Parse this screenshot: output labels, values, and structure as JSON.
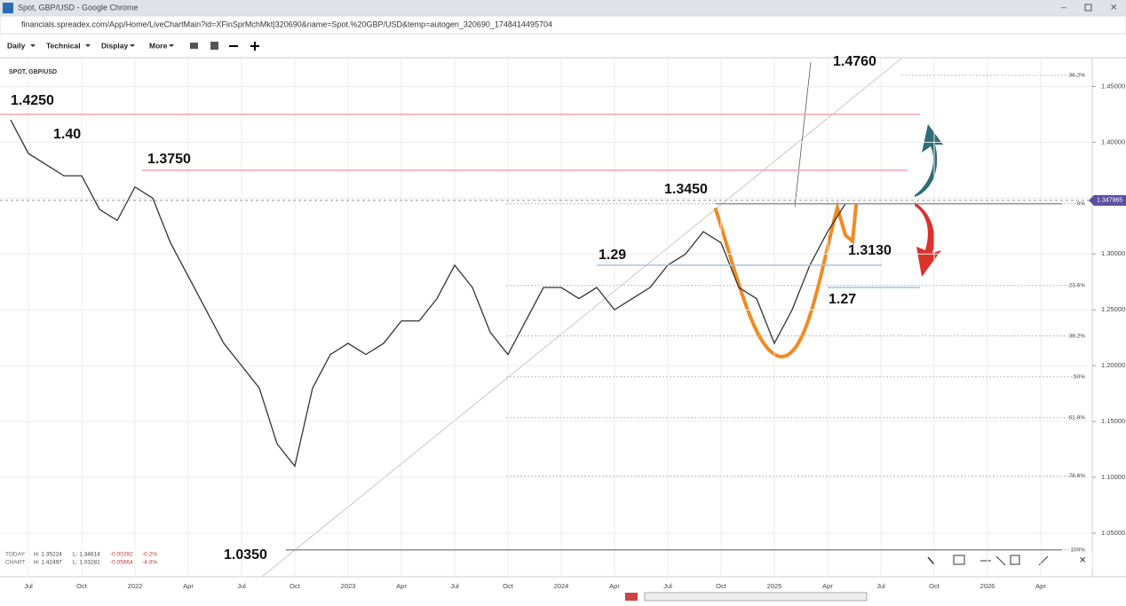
{
  "window": {
    "title": "Spot, GBP/USD - Google Chrome",
    "url": "financials.spreadex.com/App/Home/LiveChartMain?id=XFinSprMchMkt|320690&name=Spot.%20GBP/USD&temp=autogen_320690_1748414495704"
  },
  "toolbar": {
    "menus": [
      "Daily",
      "Technical",
      "Display",
      "More"
    ]
  },
  "chart_data": {
    "type": "line",
    "title": "SPOT, GBP/USD",
    "color": "#333333",
    "grid": true,
    "categories": [
      null,
      "Jul",
      null,
      null,
      "Oct",
      null,
      null,
      "2022",
      null,
      null,
      "Apr",
      null,
      null,
      "Jul",
      null,
      null,
      "Oct",
      null,
      null,
      "2023",
      null,
      null,
      "Apr",
      null,
      null,
      "Jul",
      null,
      null,
      "Oct",
      null,
      null,
      "2024",
      null,
      null,
      "Apr",
      null,
      null,
      "Jul",
      null,
      null,
      "Oct",
      null,
      null,
      "2025",
      null,
      null,
      "Apr",
      null,
      null,
      "Jul",
      null,
      null,
      "Oct",
      null,
      null,
      "2026",
      null,
      null,
      "Apr"
    ],
    "values": [
      1.42,
      1.39,
      1.38,
      1.37,
      1.37,
      1.34,
      1.33,
      1.36,
      1.35,
      1.31,
      1.28,
      1.25,
      1.22,
      1.2,
      1.18,
      1.13,
      1.11,
      1.18,
      1.21,
      1.22,
      1.21,
      1.22,
      1.24,
      1.24,
      1.26,
      1.29,
      1.27,
      1.23,
      1.21,
      1.24,
      1.27,
      1.27,
      1.26,
      1.27,
      1.25,
      1.26,
      1.27,
      1.29,
      1.3,
      1.32,
      1.31,
      1.27,
      1.26,
      1.22,
      1.25,
      1.29,
      1.32,
      1.345,
      null,
      null,
      null,
      null,
      null,
      null,
      null,
      null,
      null,
      null,
      null
    ],
    "ylim": [
      1.011,
      1.475
    ],
    "yticks": [
      {
        "value": 1.05,
        "label": "1.05000"
      },
      {
        "value": 1.1,
        "label": "1.10000"
      },
      {
        "value": 1.15,
        "label": "1.15000"
      },
      {
        "value": 1.2,
        "label": "1.20000"
      },
      {
        "value": 1.25,
        "label": "1.25000"
      },
      {
        "value": 1.3,
        "label": "1.30000"
      },
      {
        "value": 1.35,
        "label": "1.35000"
      },
      {
        "value": 1.4,
        "label": "1.40000"
      },
      {
        "value": 1.45,
        "label": "1.45000"
      }
    ],
    "price_tag": 1.347965,
    "levels": [
      {
        "value": 1.425,
        "label": "1.4250",
        "color": "#f4a3b5"
      },
      {
        "value": 1.375,
        "label": "1.3750",
        "color": "#f4a3b5"
      },
      {
        "value": 1.345,
        "label": "1.3450",
        "color": "#8a8f99"
      },
      {
        "value": 1.29,
        "label": "1.29",
        "color": "#a9c4d4"
      },
      {
        "value": 1.27,
        "label": "1.27",
        "color": "#a9c4d4"
      },
      {
        "value": 1.035,
        "label": "1.0350",
        "color": "#8a8f99"
      }
    ],
    "annotations": [
      {
        "value": 1.4,
        "label": "1.40"
      },
      {
        "value": 1.476,
        "label": "1.4760"
      },
      {
        "value": 1.313,
        "label": "1.3130"
      }
    ],
    "fib_levels": [
      {
        "value": 1.46,
        "label": "38.2%"
      },
      {
        "value": 1.345,
        "label": "0%"
      },
      {
        "value": 1.2718,
        "label": "23.6%"
      },
      {
        "value": 1.2266,
        "label": "38.2%"
      },
      {
        "value": 1.19,
        "label": "50%"
      },
      {
        "value": 1.1534,
        "label": "61.8%"
      },
      {
        "value": 1.1013,
        "label": "78.6%"
      },
      {
        "value": 1.035,
        "label": "100%"
      }
    ],
    "stats": [
      {
        "label": "TODAY:",
        "high": "H: 1.35224",
        "low": "L: 1.34614",
        "change": "-0.00292",
        "pct": "-0.2%"
      },
      {
        "label": "CHART:",
        "high": "H: 1.42497",
        "low": "L: 1.03281",
        "change": "-0.05664",
        "pct": "-4.0%"
      }
    ]
  }
}
